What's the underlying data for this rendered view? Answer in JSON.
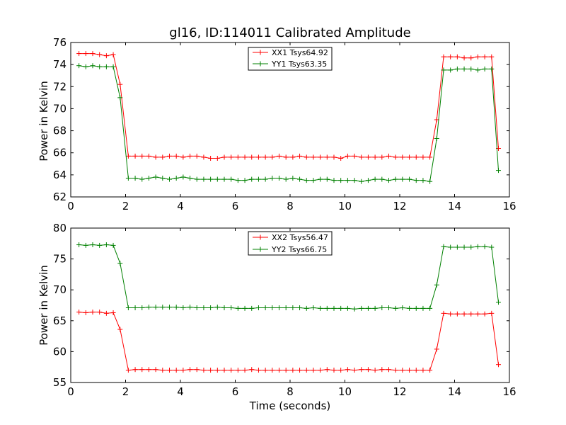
{
  "chart_data": [
    {
      "type": "line",
      "title": "gl16, ID:114011 Calibrated Amplitude",
      "xlabel": "",
      "ylabel": "Power in Kelvin",
      "xlim": [
        0,
        16
      ],
      "ylim": [
        62,
        76
      ],
      "xticks": [
        0,
        2,
        4,
        6,
        8,
        10,
        12,
        14,
        16
      ],
      "yticks": [
        62,
        64,
        66,
        68,
        70,
        72,
        74,
        76
      ],
      "grid": false,
      "legend": "top-center",
      "x": [
        0.3,
        0.55,
        0.8,
        1.05,
        1.3,
        1.55,
        1.8,
        2.1,
        2.35,
        2.6,
        2.85,
        3.1,
        3.35,
        3.6,
        3.85,
        4.1,
        4.35,
        4.6,
        4.85,
        5.1,
        5.35,
        5.6,
        5.85,
        6.1,
        6.35,
        6.6,
        6.85,
        7.1,
        7.35,
        7.6,
        7.85,
        8.1,
        8.35,
        8.6,
        8.85,
        9.1,
        9.35,
        9.6,
        9.85,
        10.1,
        10.35,
        10.6,
        10.85,
        11.1,
        11.35,
        11.6,
        11.85,
        12.1,
        12.35,
        12.6,
        12.85,
        13.1,
        13.35,
        13.6,
        13.85,
        14.1,
        14.35,
        14.6,
        14.85,
        15.1,
        15.35,
        15.6
      ],
      "series": [
        {
          "name": "XX1 Tsys64.92",
          "color": "#ff0000",
          "values": [
            75.0,
            75.0,
            75.0,
            74.9,
            74.8,
            74.9,
            72.2,
            65.7,
            65.7,
            65.7,
            65.7,
            65.6,
            65.6,
            65.7,
            65.7,
            65.6,
            65.7,
            65.7,
            65.6,
            65.5,
            65.5,
            65.6,
            65.6,
            65.6,
            65.6,
            65.6,
            65.6,
            65.6,
            65.6,
            65.7,
            65.6,
            65.6,
            65.7,
            65.6,
            65.6,
            65.6,
            65.6,
            65.6,
            65.5,
            65.7,
            65.7,
            65.6,
            65.6,
            65.6,
            65.6,
            65.7,
            65.6,
            65.6,
            65.6,
            65.6,
            65.6,
            65.6,
            69.0,
            74.7,
            74.7,
            74.7,
            74.6,
            74.6,
            74.7,
            74.7,
            74.7,
            66.4
          ]
        },
        {
          "name": "YY1 Tsys63.35",
          "color": "#008000",
          "values": [
            73.9,
            73.8,
            73.9,
            73.8,
            73.8,
            73.8,
            71.0,
            63.7,
            63.7,
            63.6,
            63.7,
            63.8,
            63.7,
            63.6,
            63.7,
            63.8,
            63.7,
            63.6,
            63.6,
            63.6,
            63.6,
            63.6,
            63.6,
            63.5,
            63.5,
            63.6,
            63.6,
            63.6,
            63.7,
            63.7,
            63.6,
            63.7,
            63.6,
            63.5,
            63.5,
            63.6,
            63.6,
            63.5,
            63.5,
            63.5,
            63.5,
            63.4,
            63.5,
            63.6,
            63.6,
            63.5,
            63.6,
            63.6,
            63.6,
            63.5,
            63.5,
            63.4,
            67.3,
            73.5,
            73.5,
            73.6,
            73.6,
            73.6,
            73.5,
            73.6,
            73.6,
            64.4
          ]
        }
      ]
    },
    {
      "type": "line",
      "title": "",
      "xlabel": "Time (seconds)",
      "ylabel": "Power in Kelvin",
      "xlim": [
        0,
        16
      ],
      "ylim": [
        55,
        80
      ],
      "xticks": [
        0,
        2,
        4,
        6,
        8,
        10,
        12,
        14,
        16
      ],
      "yticks": [
        55,
        60,
        65,
        70,
        75,
        80
      ],
      "grid": false,
      "legend": "top-center",
      "x": [
        0.3,
        0.55,
        0.8,
        1.05,
        1.3,
        1.55,
        1.8,
        2.1,
        2.35,
        2.6,
        2.85,
        3.1,
        3.35,
        3.6,
        3.85,
        4.1,
        4.35,
        4.6,
        4.85,
        5.1,
        5.35,
        5.6,
        5.85,
        6.1,
        6.35,
        6.6,
        6.85,
        7.1,
        7.35,
        7.6,
        7.85,
        8.1,
        8.35,
        8.6,
        8.85,
        9.1,
        9.35,
        9.6,
        9.85,
        10.1,
        10.35,
        10.6,
        10.85,
        11.1,
        11.35,
        11.6,
        11.85,
        12.1,
        12.35,
        12.6,
        12.85,
        13.1,
        13.35,
        13.6,
        13.85,
        14.1,
        14.35,
        14.6,
        14.85,
        15.1,
        15.35,
        15.6
      ],
      "series": [
        {
          "name": "XX2 Tsys56.47",
          "color": "#ff0000",
          "values": [
            66.4,
            66.3,
            66.4,
            66.4,
            66.2,
            66.3,
            63.6,
            57.0,
            57.1,
            57.1,
            57.1,
            57.1,
            57.0,
            57.0,
            57.0,
            57.0,
            57.1,
            57.1,
            57.0,
            57.0,
            57.0,
            57.0,
            57.0,
            57.0,
            57.0,
            57.1,
            57.0,
            57.0,
            57.0,
            57.0,
            57.0,
            57.0,
            57.0,
            57.0,
            57.0,
            57.0,
            57.1,
            57.0,
            57.0,
            57.1,
            57.0,
            57.1,
            57.1,
            57.0,
            57.1,
            57.1,
            57.0,
            57.0,
            57.0,
            57.0,
            57.0,
            57.0,
            60.4,
            66.2,
            66.1,
            66.1,
            66.1,
            66.1,
            66.1,
            66.1,
            66.2,
            57.9
          ]
        },
        {
          "name": "YY2 Tsys66.75",
          "color": "#008000",
          "values": [
            77.3,
            77.2,
            77.3,
            77.2,
            77.3,
            77.2,
            74.3,
            67.1,
            67.1,
            67.1,
            67.2,
            67.2,
            67.2,
            67.2,
            67.2,
            67.1,
            67.2,
            67.1,
            67.1,
            67.1,
            67.2,
            67.1,
            67.1,
            67.0,
            67.0,
            67.0,
            67.1,
            67.1,
            67.1,
            67.1,
            67.1,
            67.1,
            67.1,
            67.0,
            67.1,
            67.0,
            67.0,
            67.0,
            67.0,
            67.0,
            66.9,
            67.0,
            67.0,
            67.0,
            67.1,
            67.1,
            67.0,
            67.1,
            67.0,
            67.0,
            67.0,
            67.0,
            70.8,
            77.0,
            76.9,
            76.9,
            76.9,
            76.9,
            77.0,
            77.0,
            76.9,
            68.0
          ]
        }
      ]
    }
  ]
}
